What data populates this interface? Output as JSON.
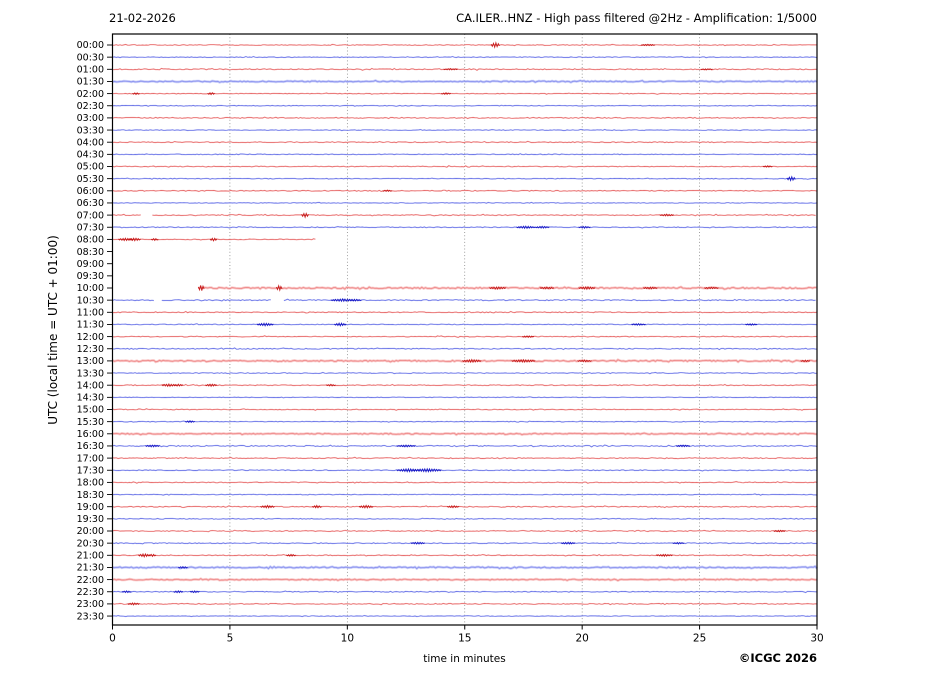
{
  "header": {
    "date": "21-02-2026",
    "title": "CA.ILER..HNZ - High pass filtered @2Hz - Amplification: 1/5000"
  },
  "footer": {
    "xlabel": "time in minutes",
    "credit": "©ICGC 2026"
  },
  "chart_data": {
    "type": "line",
    "variant": "helicorder-dayplot",
    "title": "CA.ILER..HNZ - High pass filtered @2Hz - Amplification: 1/5000",
    "date": "21-02-2026",
    "xlabel": "time in minutes",
    "ylabel": "UTC (local time = UTC + 01:00)",
    "xlim": [
      0,
      30
    ],
    "x_ticks": [
      0,
      5,
      10,
      15,
      20,
      25,
      30
    ],
    "grid": {
      "vertical_dotted_at": [
        5,
        10,
        15,
        20,
        25
      ],
      "grid_color": "#777777"
    },
    "legend": "none",
    "row_interval_minutes": 30,
    "trace_colors": {
      "red_body": "#f5a0a0",
      "red_core": "#e14f4f",
      "red_event": "#c41414",
      "blue_body": "#a0a8f5",
      "blue_core": "#4f5ae1",
      "blue_event": "#1414c4"
    },
    "rows": [
      {
        "l": "00:00",
        "c": "r",
        "seg": [
          [
            0,
            30
          ]
        ],
        "n": 0.35,
        "b": 0,
        "e": [
          [
            16.3,
            2.4,
            0.18
          ],
          [
            22.8,
            0.7,
            0.3
          ]
        ]
      },
      {
        "l": "00:30",
        "c": "b",
        "seg": [
          [
            0,
            30
          ]
        ],
        "n": 0.3,
        "b": 0,
        "e": []
      },
      {
        "l": "01:00",
        "c": "r",
        "seg": [
          [
            0,
            30
          ]
        ],
        "n": 0.5,
        "b": 0,
        "e": [
          [
            14.4,
            0.7,
            0.3
          ],
          [
            25.3,
            0.6,
            0.25
          ]
        ]
      },
      {
        "l": "01:30",
        "c": "b",
        "seg": [
          [
            0,
            30
          ]
        ],
        "n": 0.5,
        "b": 1,
        "e": []
      },
      {
        "l": "02:00",
        "c": "r",
        "seg": [
          [
            0,
            30
          ]
        ],
        "n": 0.35,
        "b": 0,
        "e": [
          [
            1.0,
            0.9,
            0.15
          ],
          [
            4.2,
            1.0,
            0.15
          ],
          [
            14.2,
            0.8,
            0.2
          ]
        ]
      },
      {
        "l": "02:30",
        "c": "b",
        "seg": [
          [
            0,
            30
          ]
        ],
        "n": 0.3,
        "b": 0,
        "e": []
      },
      {
        "l": "03:00",
        "c": "r",
        "seg": [
          [
            0,
            30
          ]
        ],
        "n": 0.4,
        "b": 0,
        "e": []
      },
      {
        "l": "03:30",
        "c": "b",
        "seg": [
          [
            0,
            30
          ]
        ],
        "n": 0.3,
        "b": 0,
        "e": []
      },
      {
        "l": "04:00",
        "c": "r",
        "seg": [
          [
            0,
            30
          ]
        ],
        "n": 0.4,
        "b": 0,
        "e": []
      },
      {
        "l": "04:30",
        "c": "b",
        "seg": [
          [
            0,
            30
          ]
        ],
        "n": 0.35,
        "b": 0,
        "e": []
      },
      {
        "l": "05:00",
        "c": "r",
        "seg": [
          [
            0,
            30
          ]
        ],
        "n": 0.4,
        "b": 0,
        "e": [
          [
            27.9,
            0.7,
            0.2
          ]
        ]
      },
      {
        "l": "05:30",
        "c": "b",
        "seg": [
          [
            0,
            30
          ]
        ],
        "n": 0.35,
        "b": 0,
        "e": [
          [
            28.9,
            2.0,
            0.18
          ]
        ]
      },
      {
        "l": "06:00",
        "c": "r",
        "seg": [
          [
            0,
            30
          ]
        ],
        "n": 0.4,
        "b": 0,
        "e": [
          [
            11.7,
            0.7,
            0.2
          ]
        ]
      },
      {
        "l": "06:30",
        "c": "b",
        "seg": [
          [
            0,
            30
          ]
        ],
        "n": 0.3,
        "b": 0,
        "e": []
      },
      {
        "l": "07:00",
        "c": "r",
        "seg": [
          [
            0,
            1.2
          ],
          [
            1.7,
            30
          ]
        ],
        "n": 0.4,
        "b": 0,
        "e": [
          [
            8.2,
            2.1,
            0.15
          ],
          [
            23.6,
            0.9,
            0.3
          ]
        ]
      },
      {
        "l": "07:30",
        "c": "b",
        "seg": [
          [
            0,
            30
          ]
        ],
        "n": 0.4,
        "b": 0,
        "e": [
          [
            17.6,
            1.1,
            0.4
          ],
          [
            18.3,
            0.9,
            0.3
          ],
          [
            20.1,
            0.9,
            0.25
          ]
        ]
      },
      {
        "l": "08:00",
        "c": "r",
        "seg": [
          [
            0,
            8.7
          ]
        ],
        "n": 0.4,
        "b": 0,
        "e": [
          [
            0.55,
            1.2,
            0.3
          ],
          [
            0.95,
            1.3,
            0.25
          ],
          [
            1.8,
            1.0,
            0.15
          ],
          [
            4.3,
            1.4,
            0.15
          ]
        ]
      },
      {
        "l": "08:30",
        "c": "b",
        "seg": [],
        "n": 0,
        "b": 0,
        "e": []
      },
      {
        "l": "09:00",
        "c": "r",
        "seg": [],
        "n": 0,
        "b": 0,
        "e": []
      },
      {
        "l": "09:30",
        "c": "b",
        "seg": [],
        "n": 0,
        "b": 0,
        "e": []
      },
      {
        "l": "10:00",
        "c": "r",
        "seg": [
          [
            3.65,
            30
          ]
        ],
        "n": 0.6,
        "b": 1,
        "e": [
          [
            3.78,
            3.0,
            0.12
          ],
          [
            7.1,
            2.5,
            0.12
          ],
          [
            16.4,
            1.1,
            0.35
          ],
          [
            18.5,
            0.9,
            0.3
          ],
          [
            20.2,
            1.2,
            0.35
          ],
          [
            22.9,
            0.9,
            0.3
          ],
          [
            25.5,
            0.8,
            0.3
          ]
        ]
      },
      {
        "l": "10:30",
        "c": "b",
        "seg": [
          [
            0,
            1.8
          ],
          [
            2.1,
            6.8
          ],
          [
            7.3,
            30
          ]
        ],
        "n": 0.5,
        "b": 0,
        "e": [
          [
            9.8,
            1.2,
            0.5
          ],
          [
            10.3,
            0.9,
            0.3
          ]
        ]
      },
      {
        "l": "11:00",
        "c": "r",
        "seg": [
          [
            0,
            30
          ]
        ],
        "n": 0.4,
        "b": 0,
        "e": []
      },
      {
        "l": "11:30",
        "c": "b",
        "seg": [
          [
            0,
            30
          ]
        ],
        "n": 0.4,
        "b": 0,
        "e": [
          [
            6.5,
            1.3,
            0.35
          ],
          [
            9.7,
            1.4,
            0.25
          ],
          [
            22.4,
            0.8,
            0.3
          ],
          [
            27.2,
            0.8,
            0.25
          ]
        ]
      },
      {
        "l": "12:00",
        "c": "r",
        "seg": [
          [
            0,
            30
          ]
        ],
        "n": 0.4,
        "b": 0,
        "e": [
          [
            17.7,
            0.8,
            0.25
          ]
        ]
      },
      {
        "l": "12:30",
        "c": "b",
        "seg": [
          [
            0,
            30
          ]
        ],
        "n": 0.45,
        "b": 0,
        "e": []
      },
      {
        "l": "13:00",
        "c": "r",
        "seg": [
          [
            0,
            30
          ]
        ],
        "n": 0.55,
        "b": 1,
        "e": [
          [
            15.3,
            1.3,
            0.4
          ],
          [
            17.5,
            1.2,
            0.5
          ],
          [
            20.1,
            0.9,
            0.3
          ],
          [
            29.5,
            0.8,
            0.2
          ]
        ]
      },
      {
        "l": "13:30",
        "c": "b",
        "seg": [
          [
            0,
            30
          ]
        ],
        "n": 0.35,
        "b": 0,
        "e": []
      },
      {
        "l": "14:00",
        "c": "r",
        "seg": [
          [
            0,
            30
          ]
        ],
        "n": 0.4,
        "b": 0,
        "e": [
          [
            2.4,
            1.2,
            0.3
          ],
          [
            2.8,
            1.0,
            0.2
          ],
          [
            4.2,
            1.1,
            0.25
          ],
          [
            9.3,
            0.8,
            0.2
          ]
        ]
      },
      {
        "l": "14:30",
        "c": "b",
        "seg": [
          [
            0,
            30
          ]
        ],
        "n": 0.3,
        "b": 0,
        "e": []
      },
      {
        "l": "15:00",
        "c": "r",
        "seg": [
          [
            0,
            30
          ]
        ],
        "n": 0.4,
        "b": 0,
        "e": []
      },
      {
        "l": "15:30",
        "c": "b",
        "seg": [
          [
            0,
            30
          ]
        ],
        "n": 0.35,
        "b": 0,
        "e": [
          [
            3.3,
            0.9,
            0.2
          ]
        ]
      },
      {
        "l": "16:00",
        "c": "r",
        "seg": [
          [
            0,
            30
          ]
        ],
        "n": 0.5,
        "b": 1,
        "e": []
      },
      {
        "l": "16:30",
        "c": "b",
        "seg": [
          [
            0,
            30
          ]
        ],
        "n": 0.5,
        "b": 0,
        "e": [
          [
            1.7,
            0.9,
            0.3
          ],
          [
            12.5,
            0.9,
            0.4
          ],
          [
            24.3,
            0.8,
            0.3
          ]
        ]
      },
      {
        "l": "17:00",
        "c": "r",
        "seg": [
          [
            0,
            30
          ]
        ],
        "n": 0.4,
        "b": 0,
        "e": []
      },
      {
        "l": "17:30",
        "c": "b",
        "seg": [
          [
            0,
            30
          ]
        ],
        "n": 0.4,
        "b": 0,
        "e": [
          [
            12.6,
            1.4,
            0.5
          ],
          [
            13.4,
            1.5,
            0.6
          ]
        ]
      },
      {
        "l": "18:00",
        "c": "r",
        "seg": [
          [
            0,
            30
          ]
        ],
        "n": 0.4,
        "b": 0,
        "e": []
      },
      {
        "l": "18:30",
        "c": "b",
        "seg": [
          [
            0,
            30
          ]
        ],
        "n": 0.35,
        "b": 0,
        "e": []
      },
      {
        "l": "19:00",
        "c": "r",
        "seg": [
          [
            0,
            30
          ]
        ],
        "n": 0.45,
        "b": 0,
        "e": [
          [
            6.6,
            1.2,
            0.3
          ],
          [
            8.7,
            1.2,
            0.2
          ],
          [
            10.8,
            1.3,
            0.3
          ],
          [
            14.5,
            1.0,
            0.25
          ]
        ]
      },
      {
        "l": "19:30",
        "c": "b",
        "seg": [
          [
            0,
            30
          ]
        ],
        "n": 0.35,
        "b": 0,
        "e": []
      },
      {
        "l": "20:00",
        "c": "r",
        "seg": [
          [
            0,
            30
          ]
        ],
        "n": 0.4,
        "b": 0,
        "e": [
          [
            28.4,
            0.8,
            0.25
          ]
        ]
      },
      {
        "l": "20:30",
        "c": "b",
        "seg": [
          [
            0,
            30
          ]
        ],
        "n": 0.4,
        "b": 0,
        "e": [
          [
            13.0,
            0.9,
            0.3
          ],
          [
            19.4,
            0.9,
            0.3
          ],
          [
            24.1,
            0.8,
            0.25
          ]
        ]
      },
      {
        "l": "21:00",
        "c": "r",
        "seg": [
          [
            0,
            30
          ]
        ],
        "n": 0.4,
        "b": 0,
        "e": [
          [
            1.35,
            1.5,
            0.25
          ],
          [
            1.7,
            1.1,
            0.15
          ],
          [
            7.6,
            0.9,
            0.2
          ],
          [
            23.5,
            1.0,
            0.35
          ]
        ]
      },
      {
        "l": "21:30",
        "c": "b",
        "seg": [
          [
            0,
            30
          ]
        ],
        "n": 0.55,
        "b": 1,
        "e": [
          [
            3.0,
            0.9,
            0.2
          ]
        ]
      },
      {
        "l": "22:00",
        "c": "r",
        "seg": [
          [
            0,
            30
          ]
        ],
        "n": 0.5,
        "b": 1,
        "e": []
      },
      {
        "l": "22:30",
        "c": "b",
        "seg": [
          [
            0,
            30
          ]
        ],
        "n": 0.4,
        "b": 0,
        "e": [
          [
            0.6,
            0.9,
            0.2
          ],
          [
            2.8,
            1.0,
            0.2
          ],
          [
            3.5,
            0.9,
            0.2
          ]
        ]
      },
      {
        "l": "23:00",
        "c": "r",
        "seg": [
          [
            0,
            30
          ]
        ],
        "n": 0.4,
        "b": 0,
        "e": [
          [
            0.9,
            1.0,
            0.25
          ]
        ]
      },
      {
        "l": "23:30",
        "c": "b",
        "seg": [
          [
            0,
            30
          ]
        ],
        "n": 0.25,
        "b": 0,
        "e": []
      }
    ]
  }
}
